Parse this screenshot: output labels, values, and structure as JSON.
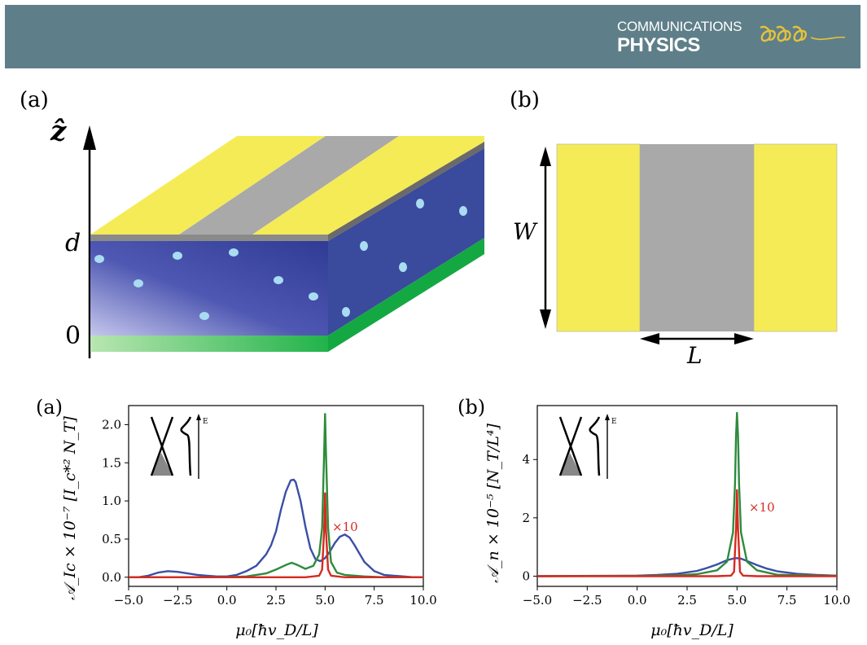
{
  "header": {
    "journal_line1": "COMMUNICATIONS",
    "journal_line2": "PHYSICS",
    "banner_color": "#5e7f89"
  },
  "schematic": {
    "label_a": "(a)",
    "label_b": "(b)",
    "z_axis_label": "ẑ",
    "d_label": "d",
    "zero_label": "0",
    "w_label": "W",
    "l_label": "L",
    "colors": {
      "lead": "#f5eb56",
      "gap": "#a9a9a9",
      "bulk": "#3a4a9c",
      "substrate": "#21b34a",
      "impurity": "#a9dcf2"
    }
  },
  "chart_data": [
    {
      "type": "line",
      "panel_label": "(a)",
      "xlabel": "μ₀[ħv_D/L]",
      "ylabel": "𝒜_Ic × 10⁻⁷ [I_c*² N_T]",
      "xlim": [
        -5.0,
        10.0
      ],
      "ylim": [
        -0.12,
        2.25
      ],
      "xticks": [
        "−5.0",
        "−2.5",
        "0.0",
        "2.5",
        "5.0",
        "7.5",
        "10.0"
      ],
      "yticks": [
        "0.0",
        "0.5",
        "1.0",
        "1.5",
        "2.0"
      ],
      "annotation": "×10",
      "inset_axis_label": "E",
      "series": [
        {
          "color": "#3a4fa5",
          "x": [
            -5,
            -4.5,
            -4,
            -3.5,
            -3,
            -2.5,
            -2,
            -1.5,
            -1,
            -0.5,
            0,
            0.5,
            1,
            1.5,
            2,
            2.25,
            2.5,
            2.75,
            3,
            3.25,
            3.4,
            3.5,
            3.75,
            4,
            4.25,
            4.5,
            4.75,
            5,
            5.25,
            5.5,
            5.75,
            6,
            6.25,
            6.5,
            7,
            7.5,
            8,
            8.5,
            9,
            9.5,
            10
          ],
          "y": [
            0.0,
            0.0,
            0.02,
            0.06,
            0.08,
            0.07,
            0.05,
            0.03,
            0.02,
            0.01,
            0.01,
            0.03,
            0.08,
            0.15,
            0.3,
            0.42,
            0.6,
            0.88,
            1.12,
            1.27,
            1.28,
            1.25,
            1.0,
            0.66,
            0.38,
            0.24,
            0.21,
            0.25,
            0.34,
            0.45,
            0.53,
            0.56,
            0.52,
            0.42,
            0.2,
            0.08,
            0.03,
            0.02,
            0.01,
            0.0,
            0.0
          ]
        },
        {
          "color": "#2e8b3c",
          "x": [
            -5,
            -2,
            0,
            1,
            2,
            2.5,
            3,
            3.3,
            3.6,
            4,
            4.4,
            4.7,
            4.85,
            4.95,
            5,
            5.05,
            5.15,
            5.3,
            5.6,
            6,
            7,
            8,
            10
          ],
          "y": [
            0,
            0,
            0,
            0.01,
            0.05,
            0.1,
            0.16,
            0.19,
            0.16,
            0.11,
            0.15,
            0.3,
            0.65,
            1.6,
            2.14,
            1.6,
            0.65,
            0.2,
            0.06,
            0.03,
            0.01,
            0,
            0
          ]
        },
        {
          "color": "#d62a20",
          "x": [
            -5,
            2,
            3,
            4,
            4.7,
            4.85,
            4.95,
            5,
            5.05,
            5.15,
            5.3,
            6,
            8,
            10
          ],
          "y": [
            0,
            0,
            0,
            0,
            0.02,
            0.1,
            0.6,
            1.1,
            0.6,
            0.1,
            0.02,
            0,
            0,
            0
          ]
        }
      ]
    },
    {
      "type": "line",
      "panel_label": "(b)",
      "xlabel": "μ₀[ħv_D/L]",
      "ylabel": "𝒜_n × 10⁻⁵ [N_T/L⁴]",
      "xlim": [
        -5.0,
        10.0
      ],
      "ylim": [
        -0.35,
        5.85
      ],
      "xticks": [
        "−5.0",
        "−2.5",
        "0.0",
        "2.5",
        "5.0",
        "7.5",
        "10.0"
      ],
      "yticks": [
        "0",
        "2",
        "4"
      ],
      "annotation": "×10",
      "inset_axis_label": "E",
      "series": [
        {
          "color": "#3a4fa5",
          "x": [
            -5,
            -2,
            0,
            1,
            2,
            3,
            3.5,
            4,
            4.5,
            4.8,
            5,
            5.2,
            5.5,
            6,
            6.5,
            7,
            8,
            9,
            10
          ],
          "y": [
            0,
            0.01,
            0.02,
            0.04,
            0.08,
            0.18,
            0.28,
            0.4,
            0.55,
            0.6,
            0.62,
            0.6,
            0.52,
            0.38,
            0.26,
            0.17,
            0.08,
            0.04,
            0.02
          ]
        },
        {
          "color": "#2e8b3c",
          "x": [
            -5,
            0,
            2,
            3,
            4,
            4.5,
            4.8,
            4.9,
            4.95,
            5,
            5.05,
            5.1,
            5.2,
            5.5,
            6,
            7,
            10
          ],
          "y": [
            0,
            0.01,
            0.03,
            0.07,
            0.2,
            0.5,
            1.5,
            3.2,
            4.8,
            5.6,
            4.8,
            3.2,
            1.5,
            0.5,
            0.2,
            0.05,
            0.01
          ]
        },
        {
          "color": "#d62a20",
          "x": [
            -5,
            4,
            4.7,
            4.85,
            4.95,
            5,
            5.05,
            5.15,
            5.3,
            6,
            10
          ],
          "y": [
            0,
            0,
            0.02,
            0.15,
            1.6,
            2.95,
            1.6,
            0.15,
            0.02,
            0,
            0
          ]
        }
      ]
    }
  ]
}
